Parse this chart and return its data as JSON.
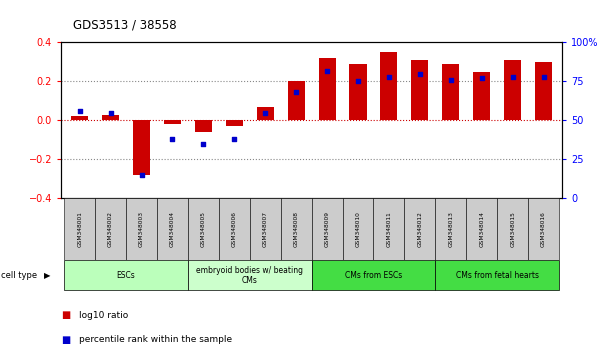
{
  "title": "GDS3513 / 38558",
  "samples": [
    "GSM348001",
    "GSM348002",
    "GSM348003",
    "GSM348004",
    "GSM348005",
    "GSM348006",
    "GSM348007",
    "GSM348008",
    "GSM348009",
    "GSM348010",
    "GSM348011",
    "GSM348012",
    "GSM348013",
    "GSM348014",
    "GSM348015",
    "GSM348016"
  ],
  "log10_ratio": [
    0.02,
    0.03,
    -0.28,
    -0.02,
    -0.06,
    -0.03,
    0.07,
    0.2,
    0.32,
    0.29,
    0.35,
    0.31,
    0.29,
    0.25,
    0.31,
    0.3
  ],
  "percentile_rank_raw": [
    56,
    55,
    15,
    38,
    35,
    38,
    55,
    68,
    82,
    75,
    78,
    80,
    76,
    77,
    78,
    78
  ],
  "bar_color": "#cc0000",
  "dot_color": "#0000cc",
  "cell_types": [
    {
      "label": "ESCs",
      "start": 0,
      "end": 3,
      "color": "#bbffbb"
    },
    {
      "label": "embryoid bodies w/ beating\nCMs",
      "start": 4,
      "end": 7,
      "color": "#ccffcc"
    },
    {
      "label": "CMs from ESCs",
      "start": 8,
      "end": 11,
      "color": "#44dd44"
    },
    {
      "label": "CMs from fetal hearts",
      "start": 12,
      "end": 15,
      "color": "#44dd44"
    }
  ],
  "ylim_left": [
    -0.4,
    0.4
  ],
  "ylim_right": [
    0,
    100
  ],
  "yticks_left": [
    -0.4,
    -0.2,
    0.0,
    0.2,
    0.4
  ],
  "yticks_right": [
    0,
    25,
    50,
    75,
    100
  ],
  "ytick_labels_right": [
    "0",
    "25",
    "50",
    "75",
    "100%"
  ],
  "background_color": "#ffffff"
}
